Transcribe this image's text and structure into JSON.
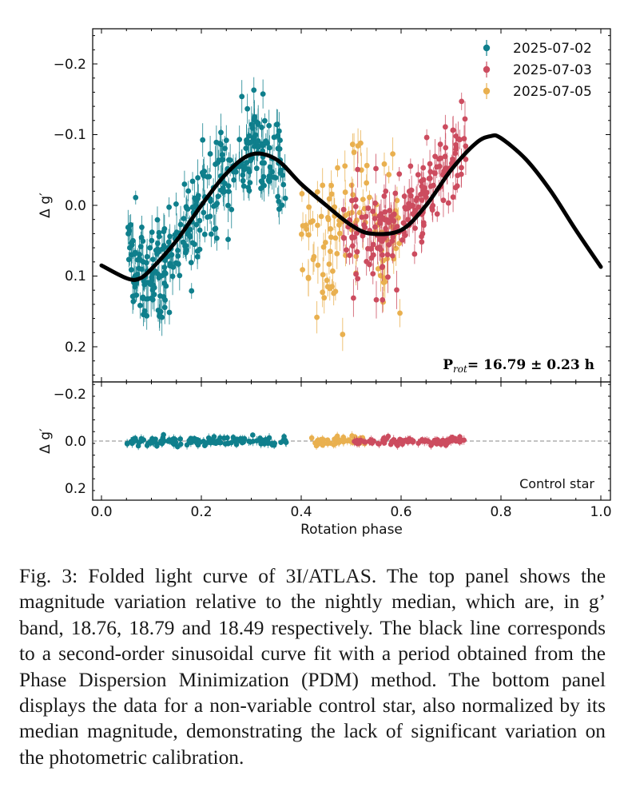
{
  "chart_data": {
    "type": "scatter",
    "title": "",
    "xlabel": "Rotation phase",
    "xlim": [
      -0.02,
      1.02
    ],
    "xticks": [
      "0.0",
      "0.2",
      "0.4",
      "0.6",
      "0.8",
      "1.0"
    ],
    "xtick_values": [
      0.0,
      0.2,
      0.4,
      0.6,
      0.8,
      1.0
    ],
    "series_colors": {
      "2025-07-02": "#0f7f8c",
      "2025-07-03": "#cc4c5f",
      "2025-07-05": "#e9b04f"
    },
    "top_panel": {
      "ylabel": "Δ g′",
      "ylim_inverted": [
        0.25,
        -0.25
      ],
      "yticks": [
        "−0.2",
        "−0.1",
        "0.0",
        "0.1",
        "0.2"
      ],
      "ytick_values": [
        -0.2,
        -0.1,
        0.0,
        0.1,
        0.2
      ],
      "legend": [
        "2025-07-02",
        "2025-07-03",
        "2025-07-05"
      ],
      "legend_position": "top-right",
      "annotation": {
        "p_label": "P",
        "p_subscript": "rot",
        "p_value": "= 16.79 ± 0.23 h"
      },
      "model_fit": {
        "name": "second-order sinusoid",
        "period_h": 16.79,
        "phase": [
          0.0,
          0.05,
          0.075,
          0.1,
          0.15,
          0.2,
          0.25,
          0.3,
          0.35,
          0.4,
          0.45,
          0.5,
          0.54,
          0.6,
          0.65,
          0.7,
          0.75,
          0.78,
          0.8,
          0.85,
          0.9,
          0.95,
          1.0
        ],
        "delta_g": [
          0.085,
          0.103,
          0.104,
          0.09,
          0.05,
          0.0,
          -0.045,
          -0.072,
          -0.065,
          -0.03,
          0.0,
          0.028,
          0.04,
          0.035,
          0.0,
          -0.05,
          -0.088,
          -0.098,
          -0.095,
          -0.065,
          -0.02,
          0.035,
          0.087
        ]
      },
      "series": [
        {
          "name": "2025-07-02",
          "phase_range": [
            0.05,
            0.37
          ],
          "n_points": 320,
          "trend": "rising from about +0.10 at phase 0.05 to about −0.08 at phase 0.32, scatter ~±0.05"
        },
        {
          "name": "2025-07-05",
          "phase_range": [
            0.4,
            0.6
          ],
          "n_points": 110,
          "trend": "centered near +0.02 with large scatter, extending to about +0.19"
        },
        {
          "name": "2025-07-03",
          "phase_range": [
            0.48,
            0.73
          ],
          "n_points": 190,
          "trend": "from about +0.05 at phase 0.5 to about −0.12 at phase 0.73"
        }
      ]
    },
    "bottom_panel": {
      "ylabel": "Δ g′",
      "ylim_inverted": [
        0.25,
        -0.25
      ],
      "yticks": [
        "−0.2",
        "0.0",
        "0.2"
      ],
      "ytick_values": [
        -0.2,
        0.0,
        0.2
      ],
      "label": "Control star",
      "reference_line": 0.0,
      "series": [
        {
          "name": "2025-07-02",
          "phase_range": [
            0.05,
            0.37
          ],
          "mean": 0.0,
          "scatter": 0.01
        },
        {
          "name": "2025-07-05",
          "phase_range": [
            0.42,
            0.53
          ],
          "mean": 0.0,
          "scatter": 0.01
        },
        {
          "name": "2025-07-03",
          "phase_range": [
            0.5,
            0.73
          ],
          "mean": 0.0,
          "scatter": 0.008
        }
      ]
    }
  },
  "caption": {
    "text": "Fig. 3: Folded light curve of 3I/ATLAS. The top panel shows the magnitude variation relative to the nightly median, which are, in g’ band, 18.76, 18.79 and 18.49 respectively. The black line corresponds to a second-order sinusoidal curve fit with a period obtained from the Phase Dispersion Minimization (PDM) method. The bottom panel displays the data for a non-variable control star, also normalized by its median magnitude, demonstrating the lack of significant variation on the photometric calibration."
  }
}
